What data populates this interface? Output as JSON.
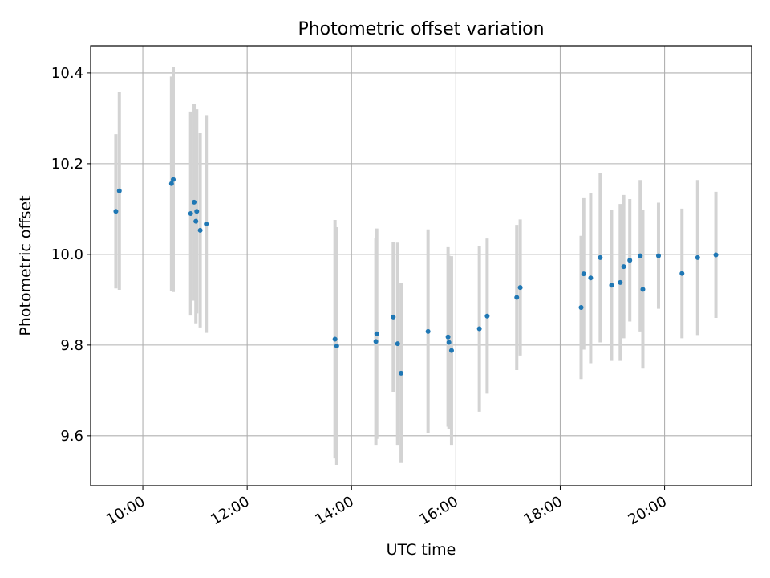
{
  "chart_data": {
    "type": "scatter",
    "title": "Photometric offset variation",
    "xlabel": "UTC time",
    "ylabel": "Photometric offset",
    "x_unit": "hours (UTC)",
    "xlim": [
      "09:00",
      "21:40"
    ],
    "ylim": [
      9.49,
      10.46
    ],
    "grid": true,
    "x_ticks": [
      "10:00",
      "12:00",
      "14:00",
      "16:00",
      "18:00",
      "20:00"
    ],
    "x_tick_values": [
      "10:00",
      "12:00",
      "14:00",
      "16:00",
      "18:00",
      "20:00"
    ],
    "y_ticks": [
      "9.6",
      "9.8",
      "10.0",
      "10.2",
      "10.4"
    ],
    "y_tick_values": [
      9.6,
      9.8,
      10.0,
      10.2,
      10.4
    ],
    "series": [
      {
        "marker_color": "#1f77b4",
        "errorbar_color": "#d3d3d3",
        "points": [
          {
            "x": "09:29",
            "y": 10.095,
            "ylow": 9.925,
            "yhigh": 10.265
          },
          {
            "x": "09:33",
            "y": 10.14,
            "ylow": 9.922,
            "yhigh": 10.358
          },
          {
            "x": "10:33",
            "y": 10.156,
            "ylow": 9.92,
            "yhigh": 10.392
          },
          {
            "x": "10:35",
            "y": 10.165,
            "ylow": 9.917,
            "yhigh": 10.413
          },
          {
            "x": "10:55",
            "y": 10.09,
            "ylow": 9.865,
            "yhigh": 10.315
          },
          {
            "x": "10:59",
            "y": 10.115,
            "ylow": 9.898,
            "yhigh": 10.332
          },
          {
            "x": "11:01",
            "y": 10.073,
            "ylow": 9.848,
            "yhigh": 10.298
          },
          {
            "x": "11:02",
            "y": 10.095,
            "ylow": 9.87,
            "yhigh": 10.32
          },
          {
            "x": "11:06",
            "y": 10.053,
            "ylow": 9.839,
            "yhigh": 10.267
          },
          {
            "x": "11:13",
            "y": 10.067,
            "ylow": 9.827,
            "yhigh": 10.307
          },
          {
            "x": "13:41",
            "y": 9.813,
            "ylow": 9.55,
            "yhigh": 10.076
          },
          {
            "x": "13:43",
            "y": 9.798,
            "ylow": 9.536,
            "yhigh": 10.06
          },
          {
            "x": "14:28",
            "y": 9.808,
            "ylow": 9.58,
            "yhigh": 10.036
          },
          {
            "x": "14:29",
            "y": 9.825,
            "ylow": 9.593,
            "yhigh": 10.057
          },
          {
            "x": "14:48",
            "y": 9.862,
            "ylow": 9.697,
            "yhigh": 10.027
          },
          {
            "x": "14:53",
            "y": 9.803,
            "ylow": 9.58,
            "yhigh": 10.026
          },
          {
            "x": "14:57",
            "y": 9.738,
            "ylow": 9.54,
            "yhigh": 9.936
          },
          {
            "x": "15:28",
            "y": 9.83,
            "ylow": 9.605,
            "yhigh": 10.055
          },
          {
            "x": "15:51",
            "y": 9.818,
            "ylow": 9.62,
            "yhigh": 10.016
          },
          {
            "x": "15:52",
            "y": 9.806,
            "ylow": 9.615,
            "yhigh": 9.997
          },
          {
            "x": "15:55",
            "y": 9.788,
            "ylow": 9.58,
            "yhigh": 9.996
          },
          {
            "x": "16:27",
            "y": 9.836,
            "ylow": 9.653,
            "yhigh": 10.019
          },
          {
            "x": "16:36",
            "y": 9.864,
            "ylow": 9.693,
            "yhigh": 10.035
          },
          {
            "x": "17:10",
            "y": 9.905,
            "ylow": 9.745,
            "yhigh": 10.065
          },
          {
            "x": "17:14",
            "y": 9.927,
            "ylow": 9.777,
            "yhigh": 10.077
          },
          {
            "x": "18:24",
            "y": 9.883,
            "ylow": 9.725,
            "yhigh": 10.041
          },
          {
            "x": "18:27",
            "y": 9.957,
            "ylow": 9.79,
            "yhigh": 10.124
          },
          {
            "x": "18:35",
            "y": 9.948,
            "ylow": 9.76,
            "yhigh": 10.136
          },
          {
            "x": "18:46",
            "y": 9.993,
            "ylow": 9.806,
            "yhigh": 10.18
          },
          {
            "x": "18:59",
            "y": 9.932,
            "ylow": 9.765,
            "yhigh": 10.099
          },
          {
            "x": "19:09",
            "y": 9.938,
            "ylow": 9.765,
            "yhigh": 10.111
          },
          {
            "x": "19:13",
            "y": 9.973,
            "ylow": 9.815,
            "yhigh": 10.131
          },
          {
            "x": "19:20",
            "y": 9.987,
            "ylow": 9.852,
            "yhigh": 10.122
          },
          {
            "x": "19:32",
            "y": 9.997,
            "ylow": 9.83,
            "yhigh": 10.164
          },
          {
            "x": "19:35",
            "y": 9.923,
            "ylow": 9.748,
            "yhigh": 10.098
          },
          {
            "x": "19:53",
            "y": 9.997,
            "ylow": 9.88,
            "yhigh": 10.114
          },
          {
            "x": "20:20",
            "y": 9.958,
            "ylow": 9.815,
            "yhigh": 10.101
          },
          {
            "x": "20:38",
            "y": 9.993,
            "ylow": 9.822,
            "yhigh": 10.164
          },
          {
            "x": "20:59",
            "y": 9.999,
            "ylow": 9.86,
            "yhigh": 10.138
          }
        ]
      }
    ]
  }
}
